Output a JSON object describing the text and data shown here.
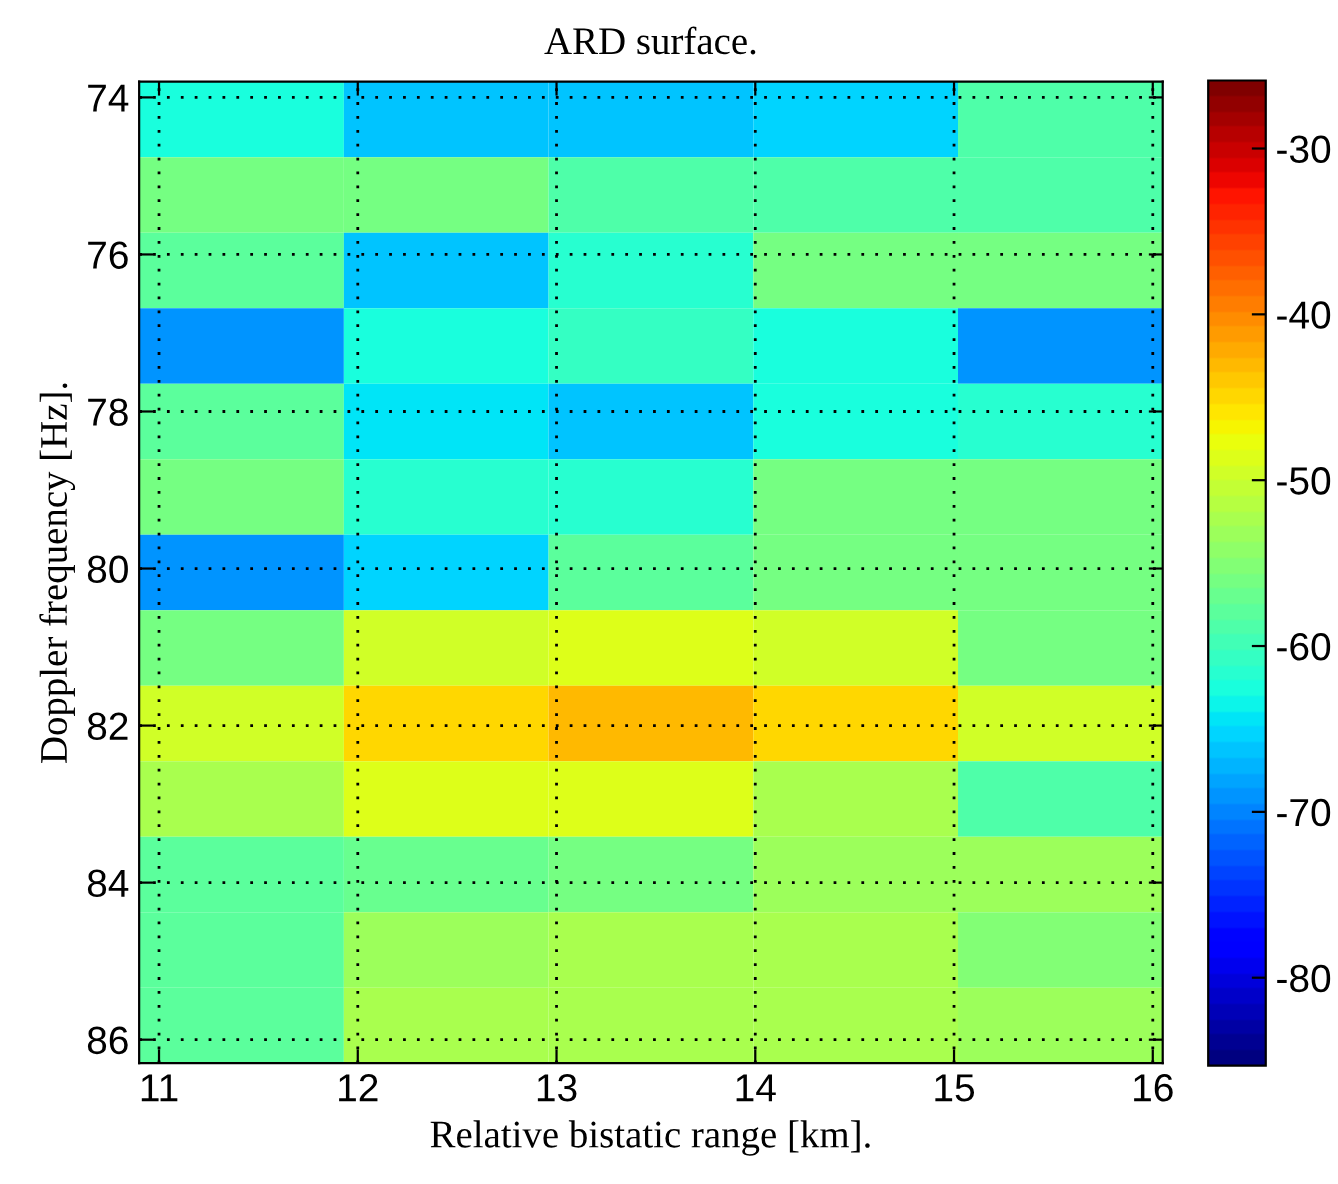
{
  "chart_data": {
    "type": "heatmap",
    "title": "ARD surface.",
    "xlabel": "Relative bistatic range [km].",
    "ylabel": "Doppler frequency [Hz].",
    "cells": [
      [
        -63,
        -66.7,
        -66.7,
        -65.7,
        -59.2
      ],
      [
        -56.5,
        -56.5,
        -59.2,
        -59.2,
        -59.2
      ],
      [
        -58.3,
        -66.7,
        -61.2,
        -56.5,
        -56.5
      ],
      [
        -69.3,
        -62.5,
        -60.5,
        -62.5,
        -69.3
      ],
      [
        -58.3,
        -64.5,
        -66.7,
        -63,
        -61.2
      ],
      [
        -56.5,
        -61.2,
        -61.2,
        -56.5,
        -55.8
      ],
      [
        -69.3,
        -65.7,
        -58.3,
        -56.5,
        -55.8
      ],
      [
        -56.5,
        -50,
        -49.1,
        -50,
        -56.5
      ],
      [
        -50,
        -44.5,
        -43.5,
        -44.5,
        -50
      ],
      [
        -52.8,
        -49.1,
        -49.1,
        -52.8,
        -59.2
      ],
      [
        -58.3,
        -57.4,
        -56.5,
        -53.7,
        -53.7
      ],
      [
        -58.3,
        -53.7,
        -52.8,
        -52.8,
        -54.7
      ],
      [
        -58.3,
        -52.8,
        -52,
        -52.8,
        -53.7
      ]
    ],
    "xlim": [
      10.9,
      16.05
    ],
    "ylim": [
      86.3,
      73.8
    ],
    "xticks": [
      11,
      12,
      13,
      14,
      15,
      16
    ],
    "yticks": [
      74,
      76,
      78,
      80,
      82,
      84,
      86
    ],
    "clim": [
      -85.3,
      -25.9
    ],
    "cticks": [
      -80,
      -70,
      -60,
      -50,
      -40,
      -30
    ],
    "grid": true
  }
}
